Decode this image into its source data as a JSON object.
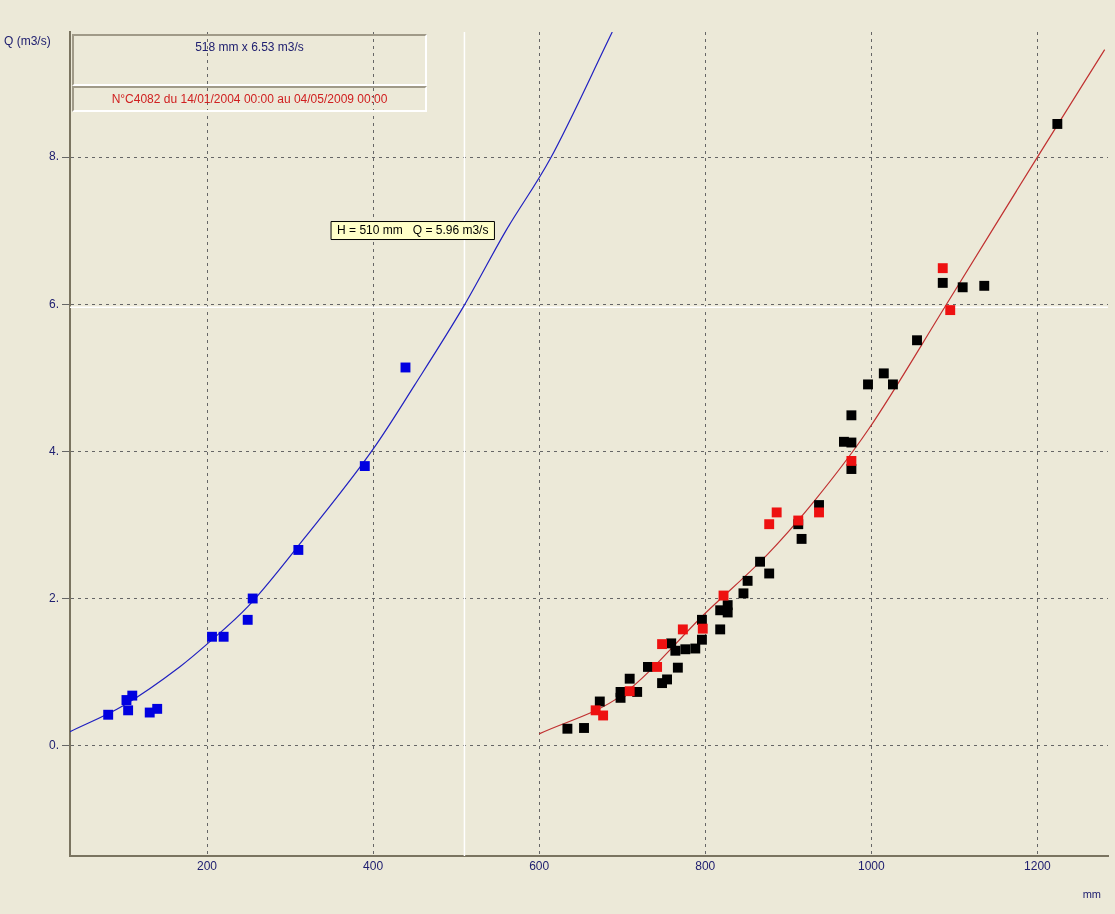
{
  "chart_data": {
    "type": "scatter",
    "ylabel": "Q (m3/s)",
    "xlabel": "mm",
    "annotations": [
      "518 mm x 6.53 m3/s",
      "N°C4082 du 14/01/2004 00:00 au 04/05/2009 00:00"
    ],
    "xlim": [
      35,
      1285
    ],
    "xticks": [
      200,
      400,
      600,
      800,
      1000,
      1200
    ],
    "ylim": [
      -1.5,
      9.7
    ],
    "yticks": [
      {
        "value": 0,
        "label": "0."
      },
      {
        "value": 2,
        "label": "2."
      },
      {
        "value": 4,
        "label": "4."
      },
      {
        "value": 6,
        "label": "6."
      },
      {
        "value": 8,
        "label": "8."
      }
    ],
    "grid": true,
    "legend": false,
    "marker": "square",
    "ref_lines": [
      {
        "axis": "x",
        "value": 510,
        "label": "H = 510 mm   Q = 5.96 m3/s",
        "color": "#ffffff"
      },
      {
        "axis": "y",
        "value": 5.96,
        "color": "#ffffff"
      }
    ],
    "series": [
      {
        "type": "line",
        "marker": "none",
        "color": "#2020c0",
        "x": [
          35,
          100,
          167,
          200,
          250,
          318,
          400,
          450,
          509,
          560,
          613,
          688
        ],
        "values": [
          0.19,
          0.55,
          1.07,
          1.38,
          1.9,
          2.83,
          4.03,
          4.9,
          5.97,
          7.0,
          7.97,
          9.7
        ]
      },
      {
        "type": "line",
        "marker": "none",
        "color": "#c03030",
        "x": [
          600,
          700,
          800,
          875,
          931,
          996,
          1090,
          1200,
          1281
        ],
        "values": [
          0.16,
          0.69,
          1.8,
          2.6,
          3.32,
          4.29,
          5.99,
          8.0,
          9.46
        ]
      },
      {
        "type": "scatter",
        "color": "#0000e0",
        "x": [
          81,
          103,
          110,
          105,
          131,
          140,
          206,
          220,
          249,
          255,
          310,
          390,
          439
        ],
        "values": [
          0.42,
          0.62,
          0.68,
          0.48,
          0.45,
          0.5,
          1.48,
          1.48,
          1.71,
          2.0,
          2.66,
          3.8,
          5.14
        ]
      },
      {
        "type": "scatter",
        "color": "#000000",
        "x": [
          634,
          654,
          673,
          698,
          698,
          709,
          718,
          731,
          748,
          754,
          767,
          759,
          764,
          776,
          788,
          796,
          796,
          818,
          818,
          827,
          827,
          846,
          851,
          866,
          877,
          912,
          916,
          937,
          976,
          967,
          976,
          976,
          996,
          1015,
          1026,
          1055,
          1086,
          1110,
          1136,
          1224
        ],
        "values": [
          0.23,
          0.24,
          0.6,
          0.73,
          0.65,
          0.91,
          0.73,
          1.07,
          0.85,
          0.9,
          1.06,
          1.39,
          1.29,
          1.31,
          1.32,
          1.44,
          1.71,
          1.58,
          1.84,
          1.81,
          1.91,
          2.07,
          2.24,
          2.5,
          2.34,
          3.01,
          2.81,
          3.27,
          3.76,
          4.13,
          4.12,
          4.49,
          4.91,
          5.06,
          4.91,
          5.51,
          6.29,
          6.23,
          6.25,
          8.45
        ]
      },
      {
        "type": "scatter",
        "color": "#ee1111",
        "x": [
          668,
          677,
          709,
          742,
          748,
          773,
          797,
          822,
          877,
          886,
          912,
          937,
          976,
          1086,
          1095
        ],
        "values": [
          0.48,
          0.41,
          0.74,
          1.07,
          1.38,
          1.58,
          1.59,
          2.04,
          3.01,
          3.17,
          3.06,
          3.17,
          3.87,
          6.49,
          5.92
        ]
      }
    ]
  }
}
